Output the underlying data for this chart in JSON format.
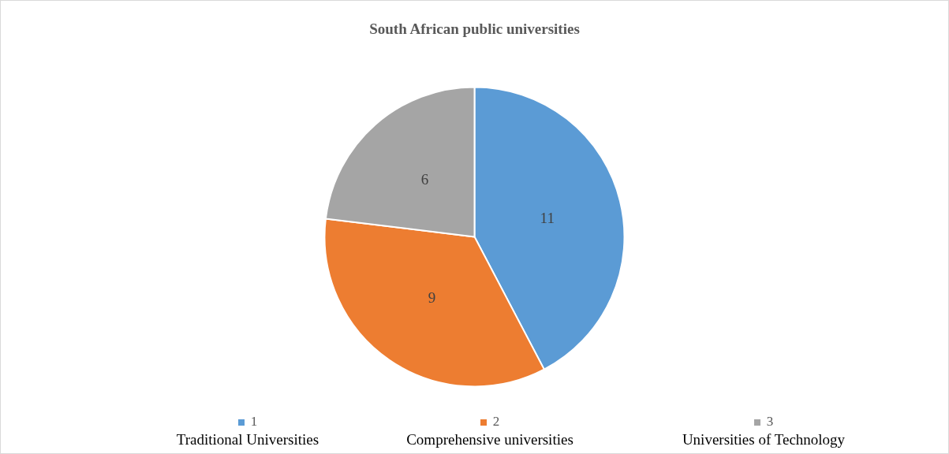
{
  "chart_data": {
    "type": "pie",
    "title": "South African public universities",
    "categories": [
      "1",
      "2",
      "3"
    ],
    "values": [
      11,
      9,
      6
    ],
    "colors": [
      "#5b9bd5",
      "#ed7d31",
      "#a5a5a5"
    ],
    "data_labels": true,
    "legend": "bottom",
    "annotations": [
      "Traditional Universities",
      "Comprehensive universities",
      "Universities of Technology"
    ]
  }
}
